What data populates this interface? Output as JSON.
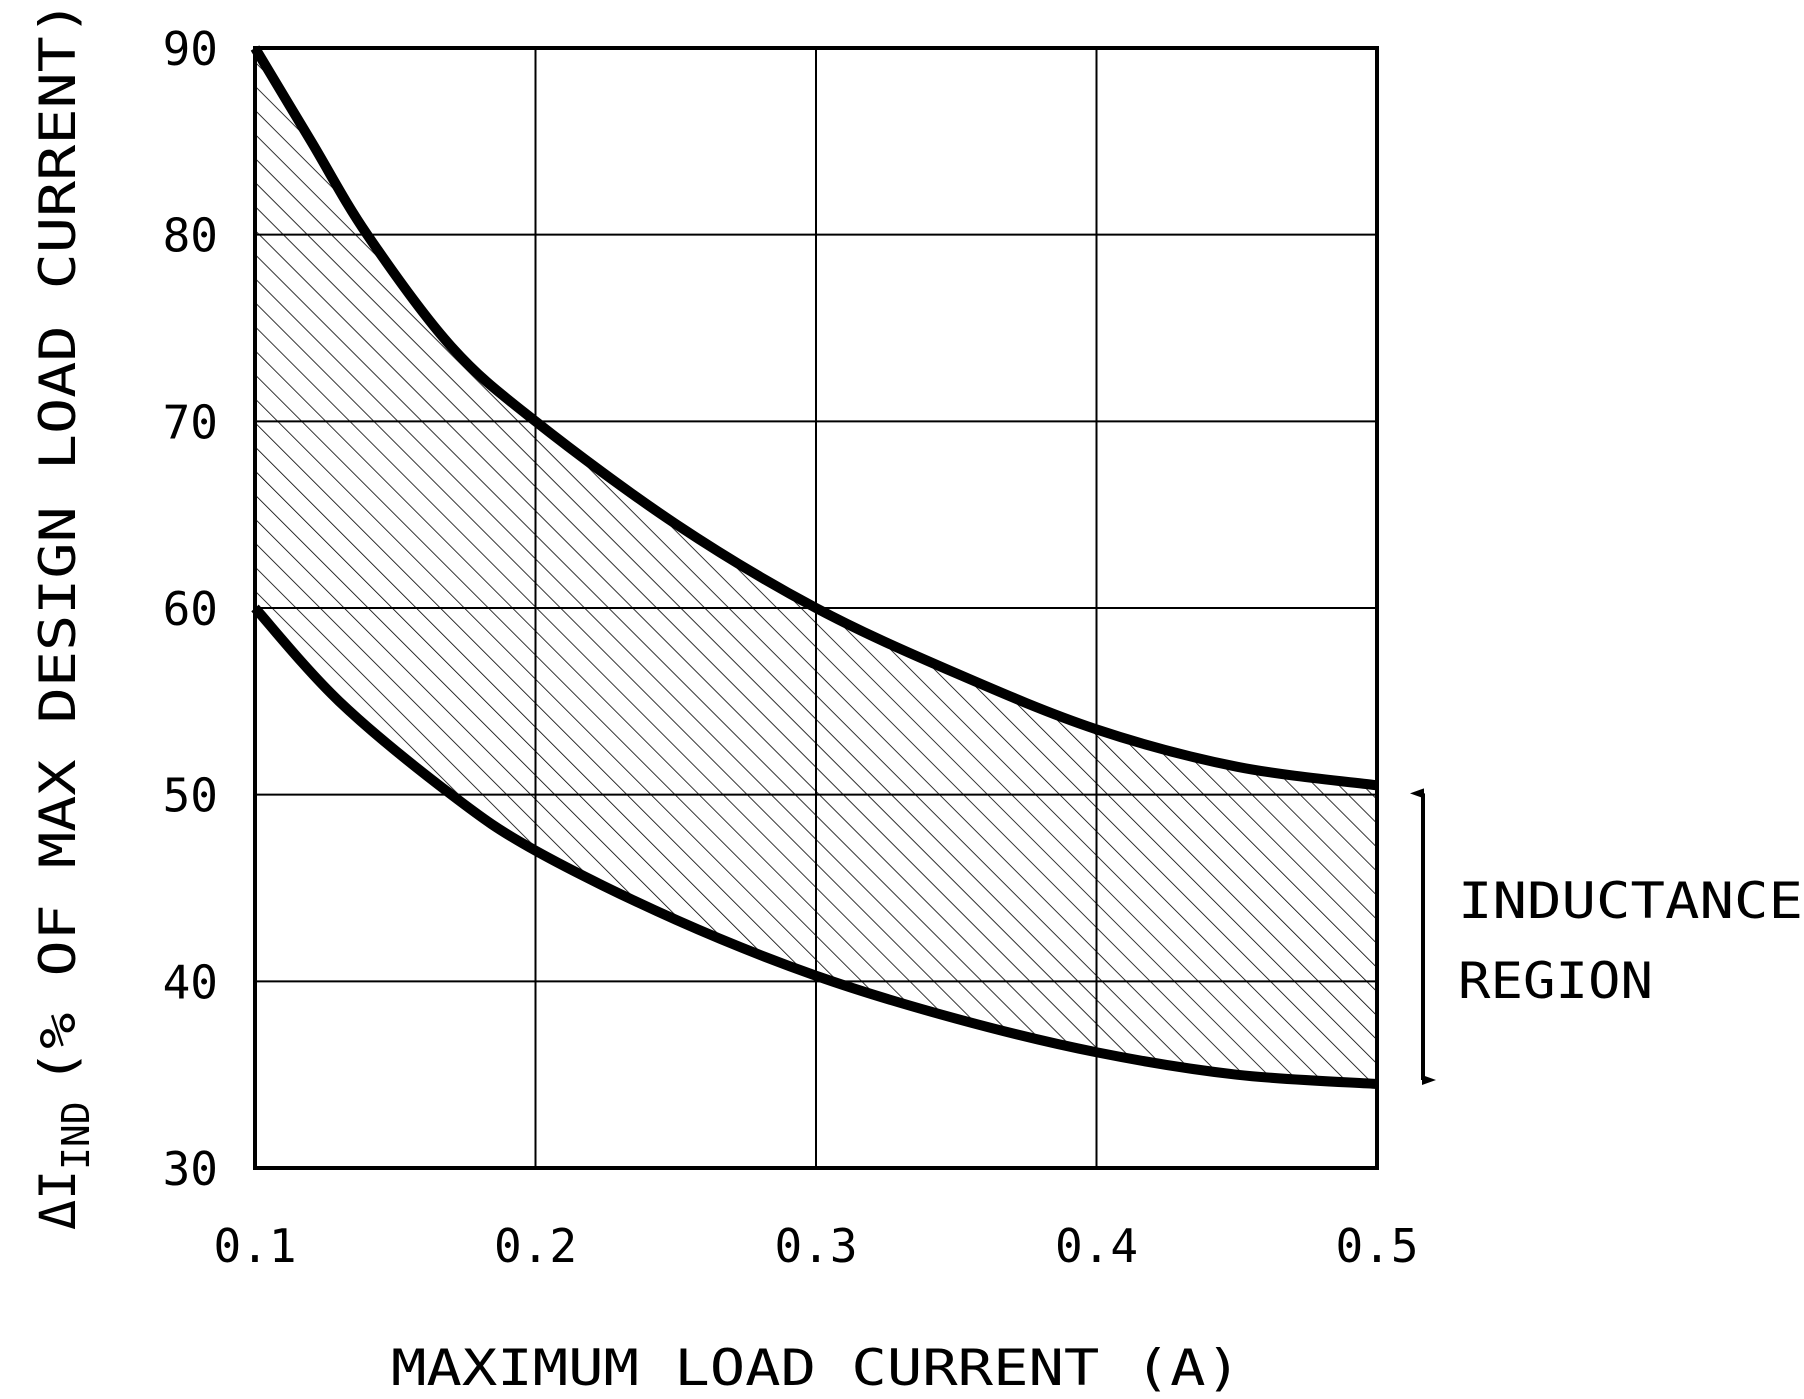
{
  "chart_data": {
    "type": "area",
    "title": "",
    "xlabel": "MAXIMUM LOAD CURRENT (A)",
    "ylabel_symbol": "ΔI",
    "ylabel_subscript": "IND",
    "ylabel_rest": "(% OF MAX DESIGN LOAD CURRENT)",
    "xlim": [
      0.1,
      0.5
    ],
    "ylim": [
      30,
      90
    ],
    "xticks": [
      "0.1",
      "0.2",
      "0.3",
      "0.4",
      "0.5"
    ],
    "yticks": [
      "30",
      "40",
      "50",
      "60",
      "70",
      "80",
      "90"
    ],
    "grid": true,
    "series": [
      {
        "x": [
          0.1,
          0.12,
          0.14,
          0.17,
          0.2,
          0.25,
          0.3,
          0.35,
          0.4,
          0.45,
          0.5
        ],
        "y": [
          90,
          85,
          80,
          74,
          70,
          64.5,
          60,
          56.5,
          53.5,
          51.5,
          50.5
        ]
      },
      {
        "x": [
          0.1,
          0.13,
          0.17,
          0.2,
          0.25,
          0.3,
          0.35,
          0.4,
          0.45,
          0.5
        ],
        "y": [
          60,
          55,
          50,
          47,
          43.3,
          40.3,
          38,
          36.2,
          35,
          34.5
        ]
      }
    ],
    "fill": "hatched",
    "annotation": {
      "line1": "INDUCTANCE",
      "line2": "REGION",
      "arrow": "double-headed vertical"
    }
  }
}
